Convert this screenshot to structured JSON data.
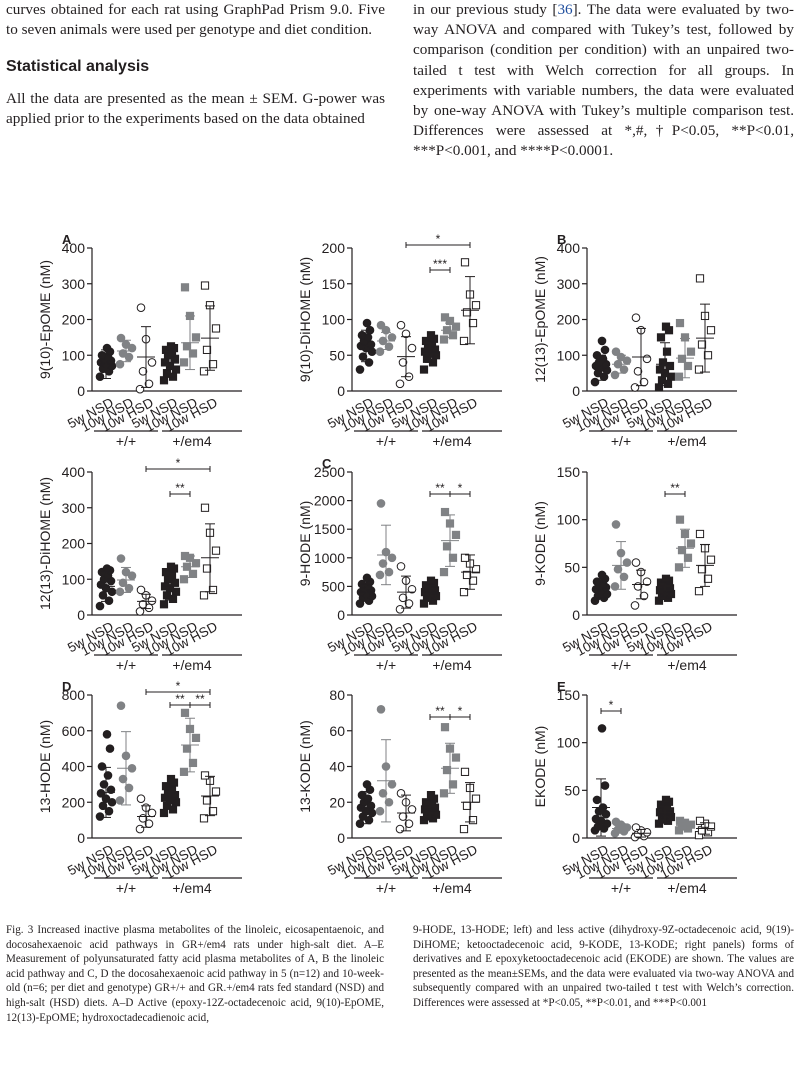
{
  "text": {
    "left_para1": "curves obtained for each rat using GraphPad Prism 9.0. Five to seven animals were used per genotype and diet condition.",
    "heading": "Statistical analysis",
    "left_para2": "All the data are presented as the mean ± SEM. G-power was applied prior to the experiments based on the data obtained",
    "right_pre": "in our previous study [",
    "right_ref": "36",
    "right_post": "]. The data were evaluated by two-way ANOVA and compared with Tukey’s test, followed by comparison (condition per condition) with an unpaired two-tailed t test with Welch correction for all groups. In experiments with variable numbers, the data were evaluated by one-way ANOVA with Tukey’s multiple comparison test. Differences were assessed at *,#,†P<0.05, **P<0.01, ***P<0.001, and ****P<0.0001."
  },
  "caption": {
    "left": "Fig. 3 Increased inactive plasma metabolites of the linoleic, eicosapentaenoic, and docosahexaenoic acid pathways in GR+/em4 rats under high-salt diet. A–E Measurement of polyunsaturated fatty acid plasma metabolites of A, B the linoleic acid pathway and C, D the docosahexaenoic acid pathway in 5 (n=12) and 10-week-old (n=6; per diet and genotype) GR+/+ and GR.+/em4 rats fed standard (NSD) and high-salt (HSD) diets. A–D Active (epoxy-12Z-octadecenoic acid, 9(10)-EpOME, 12(13)-EpOME; hydroxoctadecadienoic acid,",
    "right": "9-HODE, 13-HODE; left) and less active (dihydroxy-9Z-octadecenoic acid, 9(19)-DiHOME; ketooctadecenoic acid, 9-KODE, 13-KODE; right panels) forms of derivatives and E epoxyketooctadecenoic acid (EKODE) are shown. The values are presented as the mean±SEMs, and the data were evaluated via two-way ANOVA and subsequently compared with an unpaired two-tailed t test with Welch’s correction. Differences were assessed at *P<0.05, **P<0.01, and ***P<0.001"
  },
  "groups": [
    "5w NSD",
    "10w NSD",
    "10w HSD",
    "5w NSD",
    "10w NSD",
    "10w HSD"
  ],
  "genotypes": [
    "+/+",
    "+/em4"
  ],
  "colors": {
    "ink": "#231f20",
    "gray": "#808285"
  },
  "chart_data": [
    {
      "type": "scatter",
      "panel_letter": "A",
      "ylabel": "9(10)-EpOME (nM)",
      "ylim": [
        0,
        400
      ],
      "yticks": [
        0,
        100,
        200,
        300,
        400
      ],
      "groups": [
        {
          "mean": 75,
          "sd": 40,
          "points": [
            40,
            55,
            62,
            70,
            75,
            80,
            85,
            90,
            95,
            100,
            110,
            120
          ]
        },
        {
          "mean": 112,
          "sd": 30,
          "points": [
            75,
            95,
            105,
            120,
            130,
            148
          ]
        },
        {
          "mean": 95,
          "sd": 85,
          "points": [
            5,
            20,
            55,
            80,
            145,
            233
          ]
        },
        {
          "mean": 78,
          "sd": 40,
          "points": [
            30,
            40,
            50,
            60,
            70,
            80,
            90,
            100,
            105,
            115,
            120,
            125
          ]
        },
        {
          "mean": 135,
          "sd": 75,
          "points": [
            80,
            105,
            125,
            150,
            210,
            290
          ]
        },
        {
          "mean": 148,
          "sd": 90,
          "points": [
            55,
            75,
            115,
            175,
            240,
            295
          ]
        }
      ],
      "brackets": []
    },
    {
      "type": "scatter",
      "ylabel": "9(10)-DiHOME (nM)",
      "ylim": [
        0,
        200
      ],
      "yticks": [
        0,
        50,
        100,
        150,
        200
      ],
      "groups": [
        {
          "mean": 63,
          "sd": 22,
          "points": [
            30,
            40,
            48,
            55,
            60,
            63,
            65,
            70,
            75,
            78,
            85,
            95
          ]
        },
        {
          "mean": 70,
          "sd": 12,
          "points": [
            55,
            62,
            70,
            75,
            85,
            92
          ]
        },
        {
          "mean": 48,
          "sd": 28,
          "points": [
            10,
            20,
            40,
            60,
            80,
            92
          ]
        },
        {
          "mean": 55,
          "sd": 15,
          "points": [
            30,
            40,
            45,
            50,
            52,
            55,
            58,
            62,
            66,
            70,
            73,
            78
          ]
        },
        {
          "mean": 85,
          "sd": 10,
          "points": [
            72,
            78,
            85,
            90,
            98,
            103
          ]
        },
        {
          "mean": 113,
          "sd": 47,
          "points": [
            70,
            95,
            110,
            120,
            135,
            180
          ]
        }
      ],
      "brackets": [
        {
          "from": 3,
          "to": 4,
          "label": "***"
        },
        {
          "from": 2,
          "to": 5,
          "label": "*"
        }
      ]
    },
    {
      "type": "scatter",
      "panel_letter": "B",
      "ylabel": "12(13)-EpOME (nM)",
      "ylim": [
        0,
        400
      ],
      "yticks": [
        0,
        100,
        200,
        300,
        400
      ],
      "groups": [
        {
          "mean": 65,
          "sd": 35,
          "points": [
            25,
            40,
            50,
            58,
            65,
            70,
            75,
            80,
            90,
            100,
            115,
            140
          ]
        },
        {
          "mean": 75,
          "sd": 25,
          "points": [
            45,
            60,
            75,
            85,
            95,
            110
          ]
        },
        {
          "mean": 95,
          "sd": 80,
          "points": [
            10,
            25,
            55,
            90,
            170,
            205
          ]
        },
        {
          "mean": 75,
          "sd": 60,
          "points": [
            10,
            20,
            30,
            40,
            50,
            60,
            70,
            80,
            110,
            150,
            170,
            180
          ]
        },
        {
          "mean": 92,
          "sd": 55,
          "points": [
            40,
            70,
            90,
            110,
            150,
            190
          ]
        },
        {
          "mean": 148,
          "sd": 95,
          "points": [
            60,
            100,
            130,
            170,
            210,
            315
          ]
        }
      ],
      "brackets": []
    },
    {
      "type": "scatter",
      "ylabel": "12(13)-DiHOME (nM)",
      "ylim": [
        0,
        400
      ],
      "yticks": [
        0,
        100,
        200,
        300,
        400
      ],
      "groups": [
        {
          "mean": 80,
          "sd": 42,
          "points": [
            25,
            40,
            55,
            65,
            75,
            85,
            95,
            100,
            110,
            120,
            125,
            130
          ]
        },
        {
          "mean": 98,
          "sd": 35,
          "points": [
            65,
            75,
            90,
            110,
            120,
            158
          ]
        },
        {
          "mean": 38,
          "sd": 20,
          "points": [
            10,
            20,
            30,
            40,
            55,
            70
          ]
        },
        {
          "mean": 82,
          "sd": 40,
          "points": [
            30,
            45,
            55,
            65,
            75,
            80,
            90,
            100,
            110,
            120,
            130,
            135
          ]
        },
        {
          "mean": 135,
          "sd": 30,
          "points": [
            100,
            115,
            135,
            145,
            160,
            165
          ]
        },
        {
          "mean": 160,
          "sd": 95,
          "points": [
            55,
            70,
            130,
            180,
            230,
            300
          ]
        }
      ],
      "brackets": [
        {
          "from": 3,
          "to": 4,
          "label": "**"
        },
        {
          "from": 2,
          "to": 5,
          "label": "*"
        }
      ]
    },
    {
      "type": "scatter",
      "panel_letter": "C",
      "ylabel": "9-HODE (nM)",
      "ylim": [
        0,
        2500
      ],
      "yticks": [
        0,
        500,
        1000,
        1500,
        2000,
        2500
      ],
      "groups": [
        {
          "mean": 400,
          "sd": 150,
          "points": [
            200,
            250,
            300,
            330,
            360,
            400,
            430,
            460,
            500,
            540,
            580,
            650
          ]
        },
        {
          "mean": 1050,
          "sd": 520,
          "points": [
            700,
            750,
            900,
            1000,
            1100,
            1950
          ]
        },
        {
          "mean": 400,
          "sd": 280,
          "points": [
            100,
            200,
            300,
            450,
            600,
            850
          ]
        },
        {
          "mean": 400,
          "sd": 150,
          "points": [
            200,
            250,
            300,
            330,
            360,
            400,
            430,
            460,
            480,
            520,
            560,
            600
          ]
        },
        {
          "mean": 1300,
          "sd": 450,
          "points": [
            750,
            1000,
            1200,
            1400,
            1600,
            1800
          ]
        },
        {
          "mean": 750,
          "sd": 300,
          "points": [
            400,
            600,
            700,
            800,
            900,
            1000
          ]
        }
      ],
      "brackets": [
        {
          "from": 3,
          "to": 4,
          "label": "**"
        },
        {
          "from": 4,
          "to": 5,
          "label": "*"
        }
      ]
    },
    {
      "type": "scatter",
      "ylabel": "9-KODE (nM)",
      "ylim": [
        0,
        150
      ],
      "yticks": [
        0,
        50,
        100,
        150
      ],
      "groups": [
        {
          "mean": 28,
          "sd": 10,
          "points": [
            15,
            18,
            20,
            22,
            25,
            27,
            29,
            30,
            32,
            35,
            38,
            42
          ]
        },
        {
          "mean": 52,
          "sd": 25,
          "points": [
            30,
            40,
            48,
            55,
            65,
            95
          ]
        },
        {
          "mean": 32,
          "sd": 15,
          "points": [
            10,
            20,
            30,
            35,
            45,
            55
          ]
        },
        {
          "mean": 27,
          "sd": 8,
          "points": [
            15,
            18,
            20,
            22,
            24,
            26,
            28,
            30,
            32,
            34,
            36,
            38
          ]
        },
        {
          "mean": 70,
          "sd": 20,
          "points": [
            50,
            60,
            68,
            75,
            85,
            100
          ]
        },
        {
          "mean": 52,
          "sd": 22,
          "points": [
            25,
            38,
            48,
            58,
            70,
            85
          ]
        }
      ],
      "brackets": [
        {
          "from": 3,
          "to": 4,
          "label": "**"
        }
      ]
    },
    {
      "type": "scatter",
      "panel_letter": "D",
      "ylabel": "13-HODE (nM)",
      "ylim": [
        0,
        800
      ],
      "yticks": [
        0,
        200,
        400,
        600,
        800
      ],
      "groups": [
        {
          "mean": 255,
          "sd": 140,
          "points": [
            120,
            150,
            180,
            200,
            220,
            250,
            270,
            300,
            350,
            400,
            500,
            580
          ]
        },
        {
          "mean": 390,
          "sd": 205,
          "points": [
            210,
            280,
            330,
            390,
            460,
            740
          ]
        },
        {
          "mean": 120,
          "sd": 60,
          "points": [
            50,
            80,
            110,
            140,
            170,
            220
          ]
        },
        {
          "mean": 225,
          "sd": 60,
          "points": [
            140,
            160,
            180,
            200,
            210,
            225,
            240,
            255,
            270,
            290,
            310,
            330
          ]
        },
        {
          "mean": 520,
          "sd": 150,
          "points": [
            370,
            420,
            500,
            560,
            610,
            700
          ]
        },
        {
          "mean": 235,
          "sd": 110,
          "points": [
            110,
            150,
            210,
            260,
            320,
            350
          ]
        }
      ],
      "brackets": [
        {
          "from": 3,
          "to": 4,
          "label": "**"
        },
        {
          "from": 4,
          "to": 5,
          "label": "**"
        },
        {
          "from": 2,
          "to": 5,
          "label": "*"
        }
      ]
    },
    {
      "type": "scatter",
      "ylabel": "13-KODE (nM)",
      "ylim": [
        0,
        80
      ],
      "yticks": [
        0,
        20,
        40,
        60,
        80
      ],
      "groups": [
        {
          "mean": 17,
          "sd": 9,
          "points": [
            8,
            10,
            12,
            14,
            15,
            17,
            18,
            20,
            22,
            24,
            27,
            30
          ]
        },
        {
          "mean": 32,
          "sd": 23,
          "points": [
            15,
            20,
            25,
            30,
            40,
            72
          ]
        },
        {
          "mean": 14,
          "sd": 10,
          "points": [
            5,
            8,
            12,
            16,
            20,
            25
          ]
        },
        {
          "mean": 16,
          "sd": 5,
          "points": [
            10,
            11,
            12,
            13,
            15,
            16,
            17,
            18,
            19,
            20,
            22,
            24
          ]
        },
        {
          "mean": 39,
          "sd": 14,
          "points": [
            25,
            30,
            38,
            45,
            50,
            62
          ]
        },
        {
          "mean": 20,
          "sd": 11,
          "points": [
            5,
            10,
            18,
            22,
            28,
            37
          ]
        }
      ],
      "brackets": [
        {
          "from": 3,
          "to": 4,
          "label": "**"
        },
        {
          "from": 4,
          "to": 5,
          "label": "*"
        }
      ]
    },
    {
      "type": "scatter",
      "panel_letter": "E",
      "ylabel": "EKODE (nM)",
      "ylim": [
        0,
        150
      ],
      "yticks": [
        0,
        50,
        100,
        150
      ],
      "groups": [
        {
          "mean": 32,
          "sd": 30,
          "points": [
            8,
            10,
            12,
            15,
            18,
            20,
            25,
            28,
            32,
            40,
            55,
            115
          ]
        },
        {
          "mean": 10,
          "sd": 5,
          "points": [
            5,
            7,
            9,
            11,
            14,
            17
          ]
        },
        {
          "mean": 5,
          "sd": 4,
          "points": [
            1,
            2,
            4,
            6,
            8,
            11
          ]
        },
        {
          "mean": 25,
          "sd": 10,
          "points": [
            15,
            18,
            20,
            22,
            25,
            27,
            28,
            30,
            32,
            35,
            38,
            40
          ]
        },
        {
          "mean": 13,
          "sd": 4,
          "points": [
            8,
            10,
            12,
            14,
            16,
            18
          ]
        },
        {
          "mean": 10,
          "sd": 6,
          "points": [
            3,
            6,
            8,
            12,
            15,
            18
          ]
        }
      ],
      "brackets": [
        {
          "from": 0,
          "to": 1,
          "label": "*"
        }
      ]
    }
  ]
}
